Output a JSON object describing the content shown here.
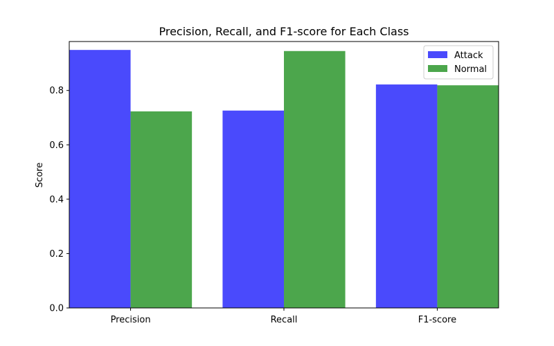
{
  "chart_data": {
    "type": "bar",
    "title": "Precision, Recall, and F1-score for Each Class",
    "xlabel": "",
    "ylabel": "Score",
    "categories": [
      "Precision",
      "Recall",
      "F1-score"
    ],
    "series": [
      {
        "name": "Attack",
        "values": [
          0.949,
          0.726,
          0.822
        ],
        "color": "#4a4afc"
      },
      {
        "name": "Normal",
        "values": [
          0.723,
          0.945,
          0.819
        ],
        "color": "#4ca64c"
      }
    ],
    "ylim": [
      0,
      0.98
    ],
    "yticks": [
      0.0,
      0.2,
      0.4,
      0.6,
      0.8
    ],
    "ytick_labels": [
      "0.0",
      "0.2",
      "0.4",
      "0.6",
      "0.8"
    ],
    "legend_position": "top-right",
    "grid": false
  }
}
